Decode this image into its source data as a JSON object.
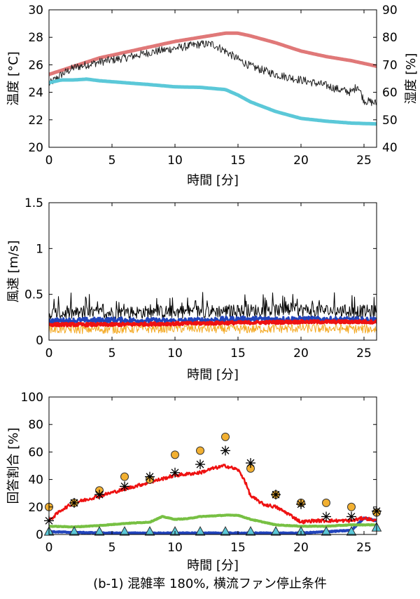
{
  "caption": "(b-1) 混雑率 180%, 横流ファン停止条件",
  "chart_data": [
    {
      "type": "line",
      "xlabel": "時間 [分]",
      "ylabel": "温度 [°C]",
      "y2label": "湿度 [%]",
      "xlim": [
        0,
        26
      ],
      "ylim": [
        20,
        30
      ],
      "y2lim": [
        40,
        90
      ],
      "xticks": [
        0,
        5,
        10,
        15,
        20,
        25
      ],
      "yticks": [
        20,
        22,
        24,
        26,
        28,
        30
      ],
      "y2ticks": [
        40,
        50,
        60,
        70,
        80,
        90
      ],
      "grid": false,
      "series": [
        {
          "axis": "left",
          "color": "#e07878",
          "width": 5,
          "x": [
            0,
            2,
            4,
            6,
            8,
            10,
            12,
            14,
            15,
            16,
            18,
            20,
            22,
            24,
            26
          ],
          "y": [
            25.3,
            25.9,
            26.5,
            26.9,
            27.3,
            27.7,
            28.0,
            28.3,
            28.3,
            28.1,
            27.6,
            27.0,
            26.6,
            26.3,
            25.9
          ]
        },
        {
          "axis": "left",
          "color": "#222222",
          "width": 1,
          "noise": 0.3,
          "x": [
            0,
            1,
            2,
            4,
            6,
            8,
            10,
            12,
            13,
            14,
            15,
            16,
            18,
            20,
            22,
            23,
            24,
            24.5,
            25,
            26
          ],
          "y": [
            24.6,
            25.3,
            25.8,
            26.2,
            26.5,
            26.9,
            27.2,
            27.5,
            27.5,
            27.0,
            26.4,
            25.9,
            25.3,
            24.9,
            24.5,
            24.2,
            24.0,
            24.5,
            23.4,
            23.2
          ]
        },
        {
          "axis": "right",
          "color": "#5bc8d8",
          "width": 5,
          "x": [
            0,
            1,
            2,
            3,
            4,
            6,
            8,
            10,
            12,
            14,
            15,
            16,
            18,
            20,
            22,
            24,
            26
          ],
          "y": [
            63.5,
            64.5,
            64.5,
            64.8,
            64.2,
            63.5,
            62.8,
            62.0,
            61.8,
            61.0,
            59.0,
            56.5,
            53.0,
            50.5,
            49.5,
            48.8,
            48.5
          ]
        }
      ]
    },
    {
      "type": "line",
      "xlabel": "時間 [分]",
      "ylabel": "風速 [m/s]",
      "xlim": [
        0,
        26
      ],
      "ylim": [
        0,
        1.5
      ],
      "xticks": [
        0,
        5,
        10,
        15,
        20,
        25
      ],
      "yticks": [
        0,
        0.5,
        1,
        1.5
      ],
      "grid": false,
      "series": [
        {
          "color": "#000000",
          "width": 1,
          "noise": 0.12,
          "spiky": true,
          "x": [
            0,
            5,
            10,
            15,
            20,
            26
          ],
          "y": [
            0.29,
            0.3,
            0.31,
            0.32,
            0.33,
            0.31
          ]
        },
        {
          "color": "#2244bb",
          "width": 3,
          "noise": 0.03,
          "x": [
            0,
            5,
            10,
            15,
            20,
            26
          ],
          "y": [
            0.21,
            0.22,
            0.21,
            0.23,
            0.23,
            0.22
          ]
        },
        {
          "color": "#f4a820",
          "width": 1,
          "noise": 0.05,
          "x": [
            0,
            5,
            10,
            15,
            20,
            26
          ],
          "y": [
            0.12,
            0.12,
            0.13,
            0.12,
            0.13,
            0.12
          ]
        },
        {
          "color": "#ee1111",
          "width": 4,
          "noise": 0.015,
          "x": [
            0,
            5,
            10,
            15,
            20,
            26
          ],
          "y": [
            0.17,
            0.17,
            0.18,
            0.19,
            0.2,
            0.2
          ]
        }
      ]
    },
    {
      "type": "line",
      "xlabel": "時間 [分]",
      "ylabel": "回答割合 [%]",
      "xlim": [
        0,
        26
      ],
      "ylim": [
        0,
        100
      ],
      "xticks": [
        0,
        5,
        10,
        15,
        20,
        25
      ],
      "yticks": [
        0,
        20,
        40,
        60,
        80,
        100
      ],
      "grid": false,
      "series": [
        {
          "color": "#2244bb",
          "width": 4,
          "noise": 0.3,
          "x": [
            0,
            2,
            5,
            10,
            15,
            20,
            24,
            25,
            26
          ],
          "y": [
            2,
            1.5,
            1,
            1,
            1,
            1,
            3,
            12,
            10
          ]
        },
        {
          "color": "#77c043",
          "width": 4,
          "noise": 0.2,
          "x": [
            0,
            2,
            4,
            6,
            8,
            9,
            10,
            11,
            12,
            14,
            15,
            16,
            18,
            20,
            22,
            24,
            26
          ],
          "y": [
            6,
            5.5,
            6.5,
            8,
            9,
            13,
            11,
            11.5,
            13,
            14,
            14,
            11,
            7,
            6,
            6,
            7,
            7
          ]
        },
        {
          "color": "#ee1111",
          "width": 2.5,
          "noise": 1.2,
          "x": [
            0,
            1,
            2,
            4,
            6,
            8,
            10,
            12,
            13,
            14,
            15,
            15.5,
            16,
            17,
            18,
            19,
            20,
            21,
            22,
            23,
            24,
            25,
            26
          ],
          "y": [
            10,
            18,
            23,
            28,
            33,
            38,
            43,
            45,
            48,
            50,
            47,
            40,
            28,
            22,
            20,
            15,
            9,
            10,
            10,
            10,
            10,
            12,
            10
          ]
        }
      ],
      "markers": [
        {
          "shape": "circle",
          "color": "#f2b031",
          "x": [
            0,
            2,
            4,
            6,
            8,
            10,
            12,
            14,
            16,
            18,
            20,
            22,
            24,
            26
          ],
          "y": [
            20,
            23,
            32,
            42,
            40,
            58,
            61,
            71,
            48,
            29,
            23,
            23,
            20,
            16
          ]
        },
        {
          "shape": "asterisk",
          "color": "#000000",
          "x": [
            0,
            2,
            4,
            6,
            8,
            10,
            12,
            14,
            16,
            18,
            20,
            22,
            24,
            26
          ],
          "y": [
            10,
            23,
            29,
            35,
            42,
            45,
            51,
            61,
            52,
            29,
            22,
            13,
            13,
            17
          ]
        },
        {
          "shape": "triangle",
          "color": "#5bc8d8",
          "x": [
            0,
            2,
            4,
            6,
            8,
            10,
            12,
            14,
            16,
            18,
            20,
            22,
            24,
            26
          ],
          "y": [
            2,
            2,
            2,
            2,
            2,
            2,
            2,
            2,
            2,
            2,
            2,
            2,
            2,
            5
          ]
        }
      ]
    }
  ]
}
